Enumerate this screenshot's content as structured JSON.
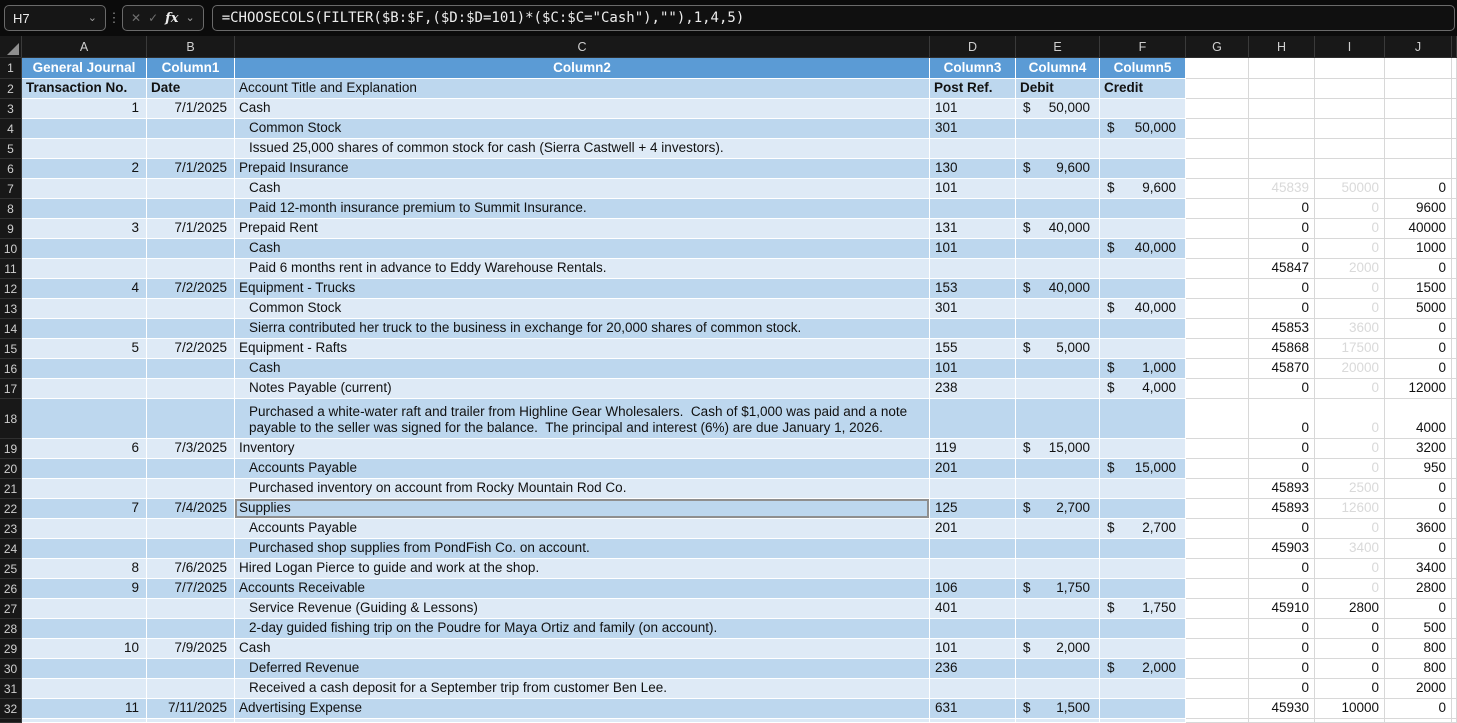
{
  "formula_bar": {
    "cell_reference": "H7",
    "formula": "=CHOOSECOLS(FILTER($B:$F,($D:$D=101)*($C:$C=\"Cash\"),\"\"),1,4,5)",
    "icons": {
      "cancel": "✕",
      "enter": "✓",
      "function": "fx",
      "chevron": "⌄",
      "dots": "⋮"
    }
  },
  "colors": {
    "table_header_blue": "#5B9BD5",
    "band_dark": "#BDD7EE",
    "band_light": "#DEEAF6",
    "faint_text": "#D9D9D9",
    "grid_line": "#D8D8D8"
  },
  "column_letters": [
    "A",
    "B",
    "C",
    "D",
    "E",
    "F",
    "G",
    "H",
    "I",
    "J"
  ],
  "sheet": {
    "currency_symbol": "$",
    "title_row": {
      "num": 1,
      "a": "General Journal",
      "b": "Column1",
      "c": "Column2",
      "d": "Column3",
      "e": "Column4",
      "f": "Column5"
    },
    "header_row": {
      "num": 2,
      "a": "Transaction No.",
      "b": "Date",
      "c": "Account Title and Explanation",
      "d": "Post Ref.",
      "e": "Debit",
      "f": "Credit"
    },
    "rows": [
      {
        "num": 3,
        "a": "1",
        "b": "7/1/2025",
        "c": "Cash",
        "d": "101",
        "e": "50,000"
      },
      {
        "num": 4,
        "c": "Common Stock",
        "ind": 1,
        "d": "301",
        "f": "50,000"
      },
      {
        "num": 5,
        "c": "Issued 25,000 shares of common stock for cash (Sierra Castwell + 4 investors).",
        "ind": 1
      },
      {
        "num": 6,
        "a": "2",
        "b": "7/1/2025",
        "c": "Prepaid Insurance",
        "d": "130",
        "e": "9,600"
      },
      {
        "num": 7,
        "c": "Cash",
        "ind": 1,
        "d": "101",
        "f": "9,600",
        "h": "45839",
        "hFaint": true,
        "i": "50000",
        "iFaint": true,
        "j": "0"
      },
      {
        "num": 8,
        "c": "Paid 12-month insurance premium to Summit Insurance.",
        "ind": 1,
        "h": "0",
        "i": "0",
        "iFaint": true,
        "j": "9600"
      },
      {
        "num": 9,
        "a": "3",
        "b": "7/1/2025",
        "c": "Prepaid Rent",
        "d": "131",
        "e": "40,000",
        "h": "0",
        "i": "0",
        "iFaint": true,
        "j": "40000"
      },
      {
        "num": 10,
        "c": "Cash",
        "ind": 1,
        "d": "101",
        "f": "40,000",
        "h": "0",
        "i": "0",
        "iFaint": true,
        "j": "1000"
      },
      {
        "num": 11,
        "c": "Paid 6 months rent in advance to Eddy Warehouse Rentals.",
        "ind": 1,
        "h": "45847",
        "i": "2000",
        "iFaint": true,
        "j": "0"
      },
      {
        "num": 12,
        "a": "4",
        "b": "7/2/2025",
        "c": "Equipment - Trucks",
        "d": "153",
        "e": "40,000",
        "h": "0",
        "i": "0",
        "iFaint": true,
        "j": "1500"
      },
      {
        "num": 13,
        "c": "Common Stock",
        "ind": 1,
        "d": "301",
        "f": "40,000",
        "h": "0",
        "i": "0",
        "iFaint": true,
        "j": "5000"
      },
      {
        "num": 14,
        "c": "Sierra contributed her truck to the business in exchange for 20,000 shares of common stock.",
        "ind": 1,
        "h": "45853",
        "i": "3600",
        "iFaint": true,
        "j": "0"
      },
      {
        "num": 15,
        "a": "5",
        "b": "7/2/2025",
        "c": "Equipment - Rafts",
        "d": "155",
        "e": "5,000",
        "h": "45868",
        "i": "17500",
        "iFaint": true,
        "j": "0"
      },
      {
        "num": 16,
        "c": "Cash",
        "ind": 1,
        "d": "101",
        "f": "1,000",
        "h": "45870",
        "i": "20000",
        "iFaint": true,
        "j": "0"
      },
      {
        "num": 17,
        "c": "Notes Payable (current)",
        "ind": 1,
        "d": "238",
        "f": "4,000",
        "h": "0",
        "i": "0",
        "iFaint": true,
        "j": "12000"
      },
      {
        "num": 18,
        "c": "Purchased a white-water raft and trailer from Highline Gear Wholesalers.  Cash of $1,000 was paid and a note payable to the seller was signed for the balance.  The principal and interest (6%) are due January 1, 2026.",
        "ind": 1,
        "tall": true,
        "h": "0",
        "i": "0",
        "iFaint": true,
        "j": "4000"
      },
      {
        "num": 19,
        "a": "6",
        "b": "7/3/2025",
        "c": "Inventory",
        "d": "119",
        "e": "15,000",
        "h": "0",
        "i": "0",
        "iFaint": true,
        "j": "3200"
      },
      {
        "num": 20,
        "c": "Accounts Payable",
        "ind": 1,
        "d": "201",
        "f": "15,000",
        "h": "0",
        "i": "0",
        "iFaint": true,
        "j": "950"
      },
      {
        "num": 21,
        "c": "Purchased inventory on account from Rocky Mountain Rod Co.",
        "ind": 1,
        "h": "45893",
        "i": "2500",
        "iFaint": true,
        "j": "0"
      },
      {
        "num": 22,
        "a": "7",
        "b": "7/4/2025",
        "c": "Supplies",
        "sel": true,
        "d": "125",
        "e": "2,700",
        "h": "45893",
        "i": "12600",
        "iFaint": true,
        "j": "0"
      },
      {
        "num": 23,
        "c": "Accounts Payable",
        "ind": 1,
        "d": "201",
        "f": "2,700",
        "h": "0",
        "i": "0",
        "iFaint": true,
        "j": "3600"
      },
      {
        "num": 24,
        "c": "Purchased shop supplies from PondFish Co. on account.",
        "ind": 1,
        "h": "45903",
        "i": "3400",
        "iFaint": true,
        "j": "0"
      },
      {
        "num": 25,
        "a": "8",
        "b": "7/6/2025",
        "c": "Hired Logan Pierce to guide and work at the shop.",
        "h": "0",
        "i": "0",
        "iFaint": true,
        "j": "3400"
      },
      {
        "num": 26,
        "a": "9",
        "b": "7/7/2025",
        "c": "Accounts Receivable",
        "d": "106",
        "e": "1,750",
        "h": "0",
        "i": "0",
        "iFaint": true,
        "j": "2800"
      },
      {
        "num": 27,
        "c": "Service Revenue (Guiding & Lessons)",
        "ind": 1,
        "d": "401",
        "f": "1,750",
        "h": "45910",
        "i": "2800",
        "j": "0"
      },
      {
        "num": 28,
        "c": "2-day guided fishing trip on the Poudre for Maya Ortiz and family (on account).",
        "ind": 1,
        "h": "0",
        "i": "0",
        "j": "500"
      },
      {
        "num": 29,
        "a": "10",
        "b": "7/9/2025",
        "c": "Cash",
        "d": "101",
        "e": "2,000",
        "h": "0",
        "i": "0",
        "j": "800"
      },
      {
        "num": 30,
        "c": "Deferred Revenue",
        "ind": 1,
        "d": "236",
        "f": "2,000",
        "h": "0",
        "i": "0",
        "j": "800"
      },
      {
        "num": 31,
        "c": "Received a cash deposit for a September trip from customer Ben Lee.",
        "ind": 1,
        "h": "0",
        "i": "0",
        "j": "2000"
      },
      {
        "num": 32,
        "a": "11",
        "b": "7/11/2025",
        "c": "Advertising Expense",
        "d": "631",
        "e": "1,500",
        "h": "45930",
        "i": "10000",
        "j": "0"
      }
    ]
  }
}
